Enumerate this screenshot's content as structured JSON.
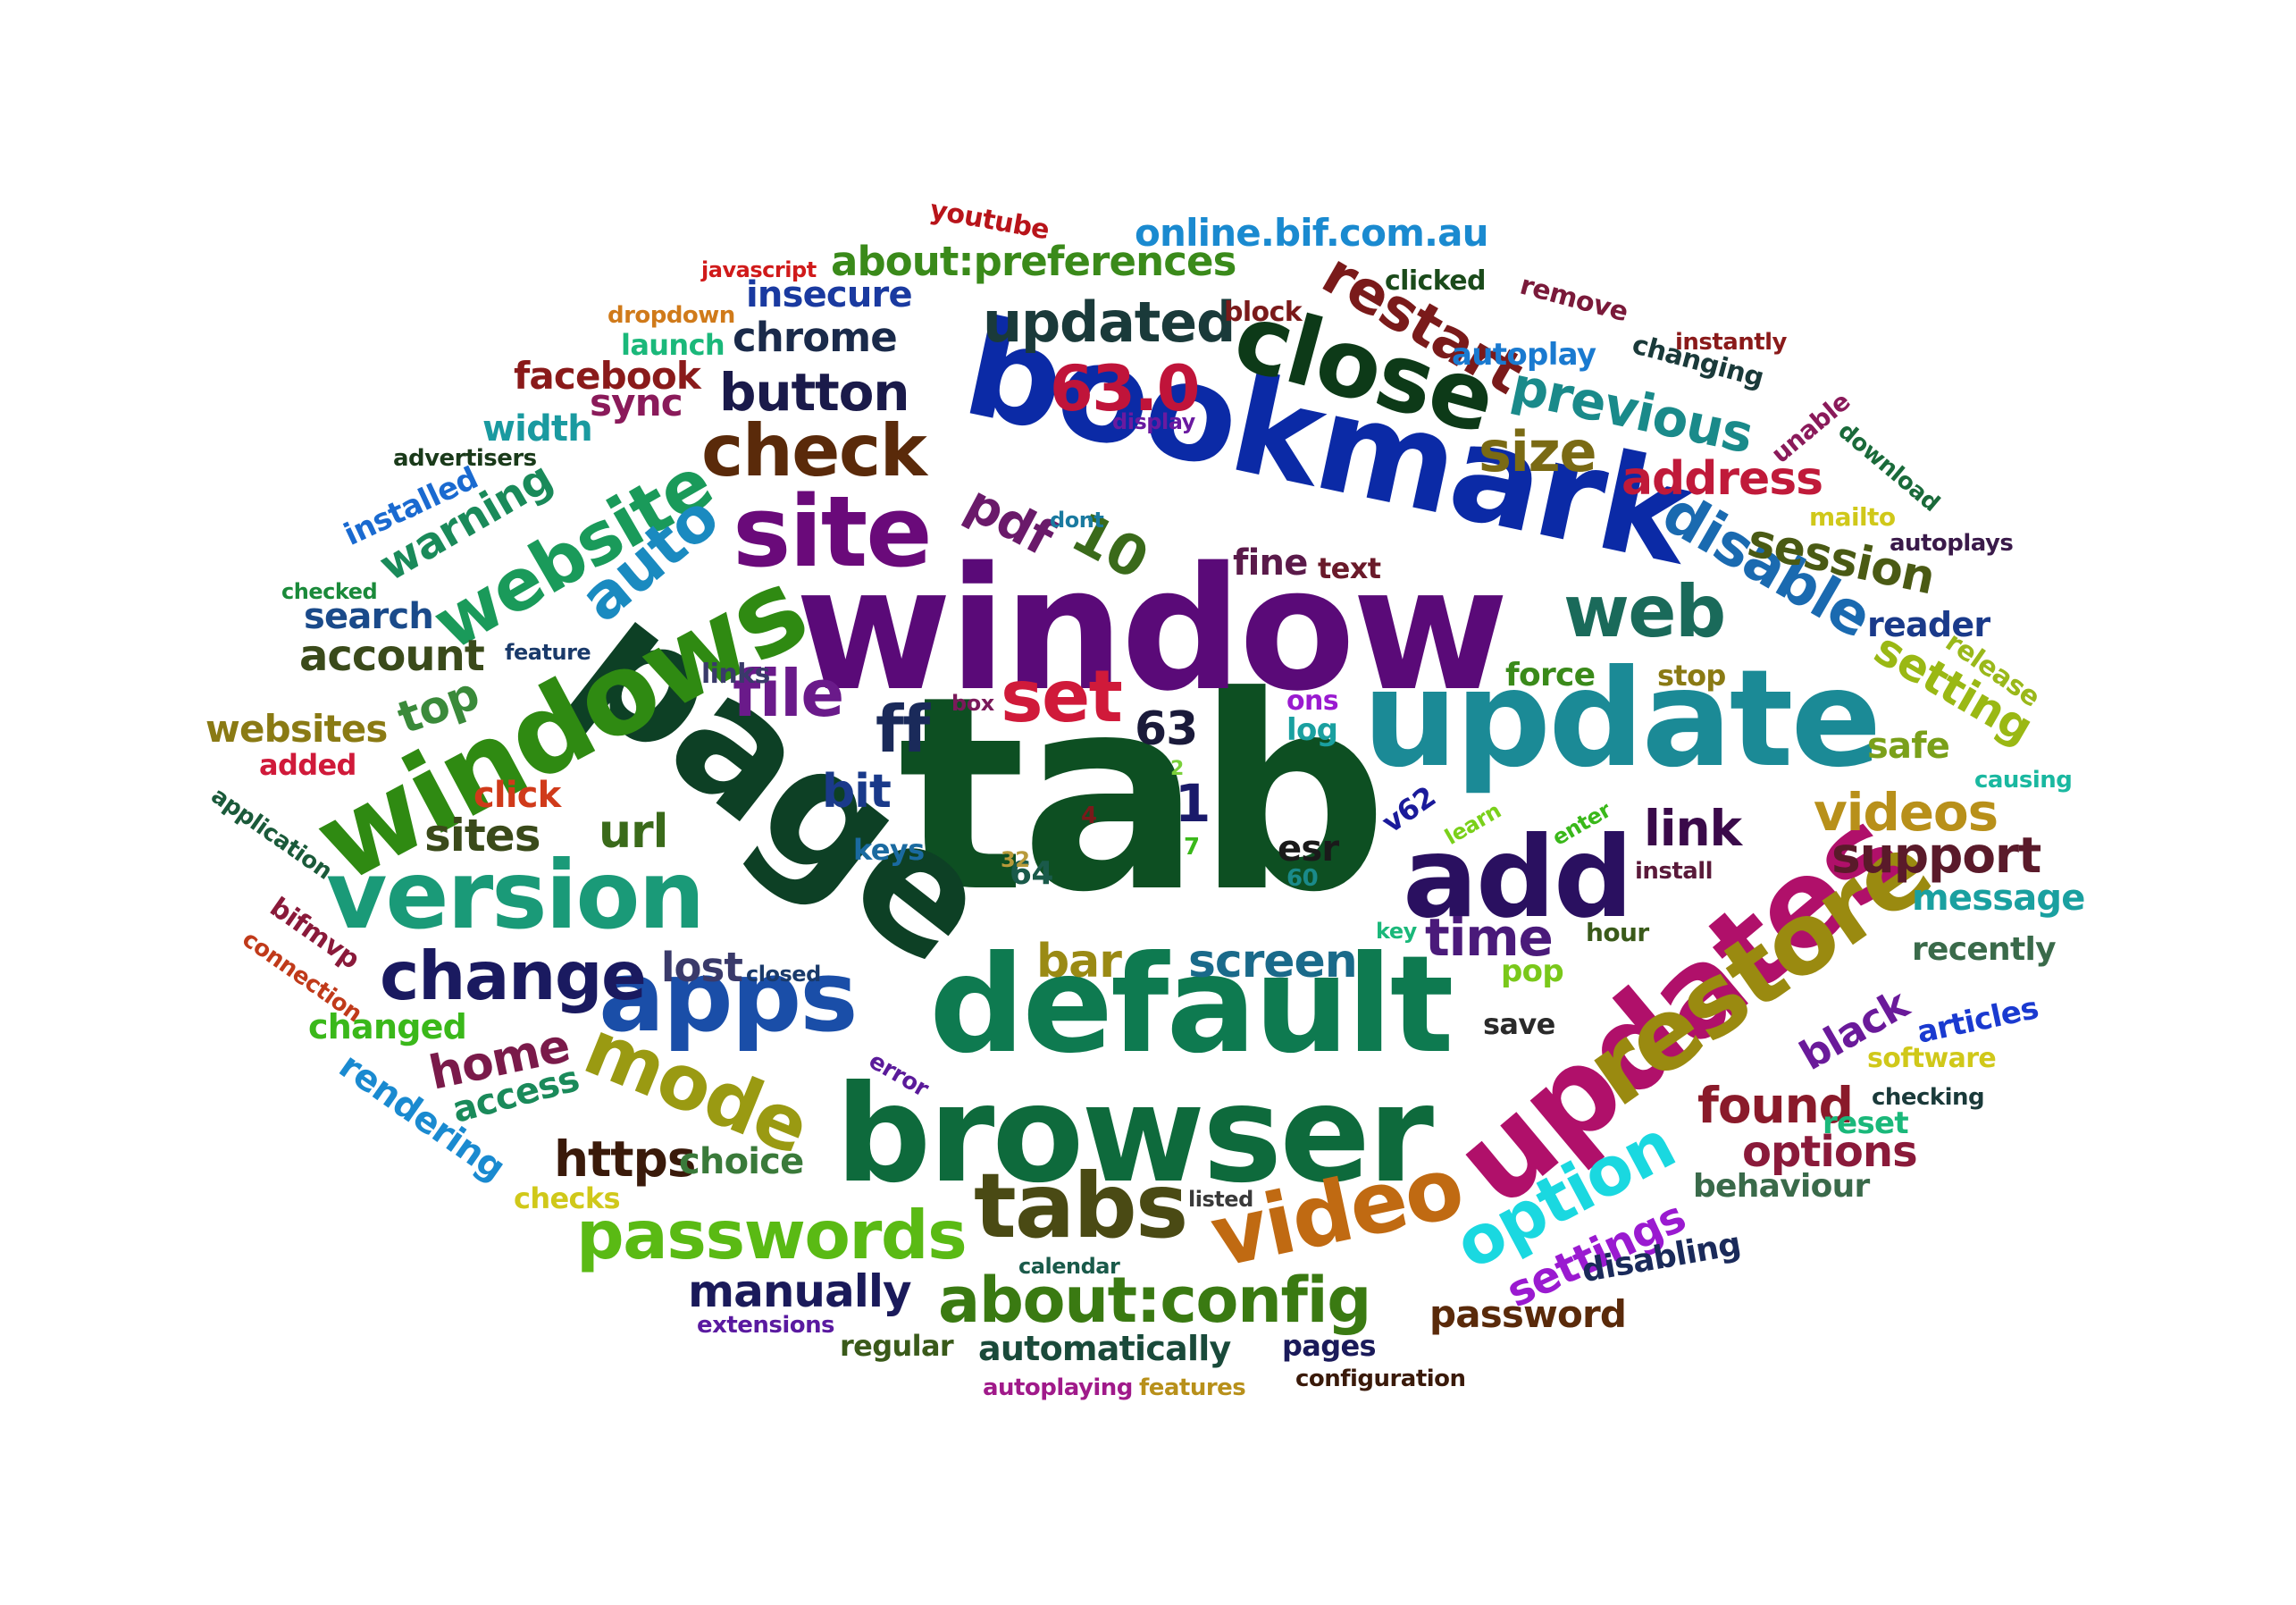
{
  "words": [
    {
      "text": "tab",
      "color": "#0d4f22"
    },
    {
      "text": "window",
      "color": "#5a0a78"
    },
    {
      "text": "page",
      "color": "#0d4025"
    },
    {
      "text": "update",
      "color": "#1b8a96"
    },
    {
      "text": "bookmark",
      "color": "#0b2aa6"
    },
    {
      "text": "default",
      "color": "#0e7a50"
    },
    {
      "text": "browser",
      "color": "#0e6a3c"
    },
    {
      "text": "updates",
      "color": "#b0106a"
    },
    {
      "text": "windows",
      "color": "#2f8a12"
    },
    {
      "text": "add",
      "color": "#2a1060"
    },
    {
      "text": "apps",
      "color": "#1a4ea8"
    },
    {
      "text": "version",
      "color": "#1a9a78"
    },
    {
      "text": "restore",
      "color": "#9a8a10"
    },
    {
      "text": "close",
      "color": "#0d3a18"
    },
    {
      "text": "site",
      "color": "#6a0a7a"
    },
    {
      "text": "video",
      "color": "#c06a12"
    },
    {
      "text": "tabs",
      "color": "#4a4a14"
    },
    {
      "text": "check",
      "color": "#5a2a0a"
    },
    {
      "text": "website",
      "color": "#1a9a5a"
    },
    {
      "text": "mode",
      "color": "#9a9a12"
    },
    {
      "text": "about:config",
      "color": "#3a7a12"
    },
    {
      "text": "passwords",
      "color": "#5aba14"
    },
    {
      "text": "change",
      "color": "#1a1a60"
    },
    {
      "text": "updated",
      "color": "#1a3a3a"
    },
    {
      "text": "63.0",
      "color": "#c0143a"
    },
    {
      "text": "restart",
      "color": "#7a1a1a"
    },
    {
      "text": "set",
      "color": "#d01a3a"
    },
    {
      "text": "file",
      "color": "#6a1a8a"
    },
    {
      "text": "ff",
      "color": "#1a2a5a"
    },
    {
      "text": "web",
      "color": "#1a6a5a"
    },
    {
      "text": "option",
      "color": "#1ad8e0"
    },
    {
      "text": "auto",
      "color": "#1a8ac0"
    },
    {
      "text": "disable",
      "color": "#1a6ab0"
    },
    {
      "text": "previous",
      "color": "#1a8a8a"
    },
    {
      "text": "button",
      "color": "#1a1a4a"
    },
    {
      "text": "10",
      "color": "#3a6a1a"
    },
    {
      "text": "pdf",
      "color": "#6a1a6a"
    },
    {
      "text": "size",
      "color": "#7a6a14"
    },
    {
      "text": "address",
      "color": "#c01a3a"
    },
    {
      "text": "session",
      "color": "#4a5a14"
    },
    {
      "text": "setting",
      "color": "#9ab814"
    },
    {
      "text": "videos",
      "color": "#b8901a"
    },
    {
      "text": "support",
      "color": "#5a1a2a"
    },
    {
      "text": "link",
      "color": "#3a0a4a"
    },
    {
      "text": "time",
      "color": "#4a1a7a"
    },
    {
      "text": "screen",
      "color": "#1a6a8a"
    },
    {
      "text": "bar",
      "color": "#9a8a14"
    },
    {
      "text": "home",
      "color": "#7a1a4a"
    },
    {
      "text": "lost",
      "color": "#3a3a6a"
    },
    {
      "text": "https",
      "color": "#3a1a0a"
    },
    {
      "text": "choice",
      "color": "#3a7a3a"
    },
    {
      "text": "found",
      "color": "#8a1a2a"
    },
    {
      "text": "options",
      "color": "#8a1a3a"
    },
    {
      "text": "black",
      "color": "#6a1a9a"
    },
    {
      "text": "settings",
      "color": "#9a1ad0"
    },
    {
      "text": "manually",
      "color": "#1a1a5a"
    },
    {
      "text": "automatically",
      "color": "#1a4a3a"
    },
    {
      "text": "password",
      "color": "#5a2a0a"
    },
    {
      "text": "sites",
      "color": "#3a4a1a"
    },
    {
      "text": "url",
      "color": "#3a6a1a"
    },
    {
      "text": "top",
      "color": "#3a8a3a"
    },
    {
      "text": "account",
      "color": "#3a4a1a"
    },
    {
      "text": "warning",
      "color": "#1a8a5a"
    },
    {
      "text": "chrome",
      "color": "#1a2a4a"
    },
    {
      "text": "about:preferences",
      "color": "#3a8a1a"
    },
    {
      "text": "online.bif.com.au",
      "color": "#1a8ad0"
    },
    {
      "text": "insecure",
      "color": "#1a3aa0"
    },
    {
      "text": "facebook",
      "color": "#8a1a1a"
    },
    {
      "text": "sync",
      "color": "#8a1a5a"
    },
    {
      "text": "width",
      "color": "#1a9aa0"
    },
    {
      "text": "search",
      "color": "#1a4a8a"
    },
    {
      "text": "websites",
      "color": "#8a7a14"
    },
    {
      "text": "click",
      "color": "#d03a1a"
    },
    {
      "text": "bit",
      "color": "#1a3a8a"
    },
    {
      "text": "63",
      "color": "#1a1a3a"
    },
    {
      "text": "1",
      "color": "#1a1a6a"
    },
    {
      "text": "64",
      "color": "#1a5a4a"
    },
    {
      "text": "esr",
      "color": "#1a1a1a"
    },
    {
      "text": "keys",
      "color": "#1a6aa0"
    },
    {
      "text": "v62",
      "color": "#1a1a9a"
    },
    {
      "text": "fine",
      "color": "#5a1a4a"
    },
    {
      "text": "text",
      "color": "#6a1a2a"
    },
    {
      "text": "force",
      "color": "#3a8a1a"
    },
    {
      "text": "stop",
      "color": "#8a7a14"
    },
    {
      "text": "reader",
      "color": "#1a3a8a"
    },
    {
      "text": "safe",
      "color": "#7aa01a"
    },
    {
      "text": "release",
      "color": "#9ab81a"
    },
    {
      "text": "message",
      "color": "#1aa0a0"
    },
    {
      "text": "recently",
      "color": "#3a6a4a"
    },
    {
      "text": "articles",
      "color": "#1a3ad0"
    },
    {
      "text": "software",
      "color": "#d0c81a"
    },
    {
      "text": "checking",
      "color": "#1a3a3a"
    },
    {
      "text": "reset",
      "color": "#1ab87a"
    },
    {
      "text": "behaviour",
      "color": "#3a6a4a"
    },
    {
      "text": "disabling",
      "color": "#1a2a5a"
    },
    {
      "text": "save",
      "color": "#2a2a2a"
    },
    {
      "text": "pop",
      "color": "#7ac81a"
    },
    {
      "text": "hour",
      "color": "#3a5a1a"
    },
    {
      "text": "key",
      "color": "#1ab87a"
    },
    {
      "text": "install",
      "color": "#5a1a3a"
    },
    {
      "text": "enter",
      "color": "#3ab81a"
    },
    {
      "text": "learn",
      "color": "#7ad01a"
    },
    {
      "text": "60",
      "color": "#1a8a8a"
    },
    {
      "text": "7",
      "color": "#3ab81a"
    },
    {
      "text": "4",
      "color": "#7a1a1a"
    },
    {
      "text": "2",
      "color": "#7ad03a"
    },
    {
      "text": "32",
      "color": "#b89a3a"
    },
    {
      "text": "ons",
      "color": "#9a1ad0"
    },
    {
      "text": "log",
      "color": "#1aa0a0"
    },
    {
      "text": "box",
      "color": "#7a1a5a"
    },
    {
      "text": "links",
      "color": "#3a3a6a"
    },
    {
      "text": "feature",
      "color": "#1a3a6a"
    },
    {
      "text": "dont",
      "color": "#1a7aa0"
    },
    {
      "text": "display",
      "color": "#6a1aa0"
    },
    {
      "text": "closed",
      "color": "#1a3a6a"
    },
    {
      "text": "error",
      "color": "#5a1a9a"
    },
    {
      "text": "listed",
      "color": "#3a3a3a"
    },
    {
      "text": "calendar",
      "color": "#1a5a4a"
    },
    {
      "text": "extensions",
      "color": "#5a1aa0"
    },
    {
      "text": "regular",
      "color": "#3a5a1a"
    },
    {
      "text": "pages",
      "color": "#1a1a5a"
    },
    {
      "text": "autoplaying",
      "color": "#a01a8a"
    },
    {
      "text": "features",
      "color": "#b8901a"
    },
    {
      "text": "configuration",
      "color": "#3a1a0a"
    },
    {
      "text": "checks",
      "color": "#d0c81a"
    },
    {
      "text": "access",
      "color": "#1a8a5a"
    },
    {
      "text": "rendering",
      "color": "#1a8ad0"
    },
    {
      "text": "changed",
      "color": "#3ab81a"
    },
    {
      "text": "bifmvp",
      "color": "#8a1a3a"
    },
    {
      "text": "connection",
      "color": "#c03a1a"
    },
    {
      "text": "application",
      "color": "#1a5a3a"
    },
    {
      "text": "added",
      "color": "#d01a3a"
    },
    {
      "text": "checked",
      "color": "#1a8a3a"
    },
    {
      "text": "installed",
      "color": "#1a6ad0"
    },
    {
      "text": "advertisers",
      "color": "#1a3a1a"
    },
    {
      "text": "dropdown",
      "color": "#d07a1a"
    },
    {
      "text": "launch",
      "color": "#1ab87a"
    },
    {
      "text": "javascript",
      "color": "#d01a1a"
    },
    {
      "text": "youtube",
      "color": "#b8141a"
    },
    {
      "text": "block",
      "color": "#7a1a1a"
    },
    {
      "text": "clicked",
      "color": "#1a4a1a"
    },
    {
      "text": "remove",
      "color": "#7a1a3a"
    },
    {
      "text": "autoplay",
      "color": "#1a7ad0"
    },
    {
      "text": "changing",
      "color": "#1a3a3a"
    },
    {
      "text": "instantly",
      "color": "#8a1a1a"
    },
    {
      "text": "unable",
      "color": "#8a1a5a"
    },
    {
      "text": "download",
      "color": "#1a6a3a"
    },
    {
      "text": "mailto",
      "color": "#d0c81a"
    },
    {
      "text": "autoplays",
      "color": "#3a1a4a"
    },
    {
      "text": "causing",
      "color": "#1ab8a0"
    }
  ]
}
